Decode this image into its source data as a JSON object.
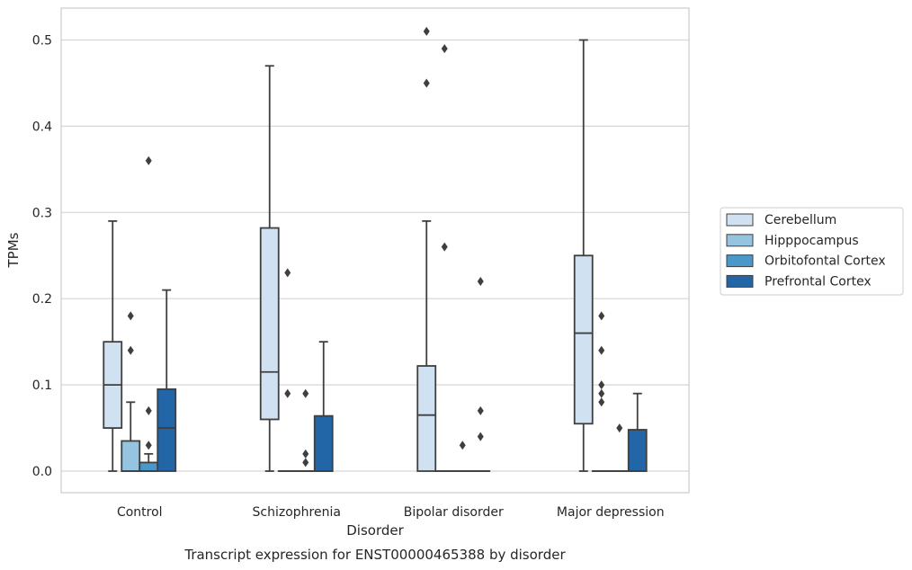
{
  "colors": {
    "Cerebellum": "#d0e1f2",
    "Hipppocampus": "#94c4df",
    "Orbitofontal Cortex": "#4a98c9",
    "Prefrontal Cortex": "#2366a8",
    "box_edge": "#3f3f3f",
    "grid": "#d6d6d6",
    "frame": "#cccccc"
  },
  "chart_data": {
    "type": "boxplot",
    "title": "Transcript expression for ENST00000465388 by disorder",
    "xlabel": "Disorder",
    "ylabel": "TPMs",
    "ylim": [
      -0.025,
      0.537
    ],
    "yticks": [
      "0.0",
      "0.1",
      "0.2",
      "0.3",
      "0.4",
      "0.5"
    ],
    "ytick_values": [
      0.0,
      0.1,
      0.2,
      0.3,
      0.4,
      0.5
    ],
    "grid": true,
    "legend_position": "right",
    "categories": [
      "Control",
      "Schizophrenia",
      "Bipolar disorder",
      "Major depression"
    ],
    "hue": [
      "Cerebellum",
      "Hipppocampus",
      "Orbitofontal Cortex",
      "Prefrontal Cortex"
    ],
    "boxes": [
      {
        "category": "Control",
        "hue": "Cerebellum",
        "min": 0.0,
        "q1": 0.05,
        "median": 0.1,
        "q3": 0.15,
        "max": 0.29,
        "outliers": []
      },
      {
        "category": "Control",
        "hue": "Hipppocampus",
        "min": 0.0,
        "q1": 0.0,
        "median": 0.0,
        "q3": 0.035,
        "max": 0.08,
        "outliers": [
          0.14,
          0.18
        ]
      },
      {
        "category": "Control",
        "hue": "Orbitofontal Cortex",
        "min": 0.0,
        "q1": 0.0,
        "median": 0.0,
        "q3": 0.01,
        "max": 0.02,
        "outliers": [
          0.03,
          0.07,
          0.36
        ]
      },
      {
        "category": "Control",
        "hue": "Prefrontal Cortex",
        "min": 0.0,
        "q1": 0.0,
        "median": 0.05,
        "q3": 0.095,
        "max": 0.21,
        "outliers": []
      },
      {
        "category": "Schizophrenia",
        "hue": "Cerebellum",
        "min": 0.0,
        "q1": 0.06,
        "median": 0.115,
        "q3": 0.282,
        "max": 0.47,
        "outliers": []
      },
      {
        "category": "Schizophrenia",
        "hue": "Hipppocampus",
        "min": 0.0,
        "q1": 0.0,
        "median": 0.0,
        "q3": 0.0,
        "max": 0.0,
        "outliers": [
          0.09,
          0.23
        ]
      },
      {
        "category": "Schizophrenia",
        "hue": "Orbitofontal Cortex",
        "min": 0.0,
        "q1": 0.0,
        "median": 0.0,
        "q3": 0.0,
        "max": 0.0,
        "outliers": [
          0.01,
          0.02,
          0.09
        ]
      },
      {
        "category": "Schizophrenia",
        "hue": "Prefrontal Cortex",
        "min": 0.0,
        "q1": 0.0,
        "median": 0.0,
        "q3": 0.064,
        "max": 0.15,
        "outliers": []
      },
      {
        "category": "Bipolar disorder",
        "hue": "Cerebellum",
        "min": 0.0,
        "q1": 0.0,
        "median": 0.065,
        "q3": 0.122,
        "max": 0.29,
        "outliers": [
          0.45,
          0.51
        ]
      },
      {
        "category": "Bipolar disorder",
        "hue": "Hipppocampus",
        "min": 0.0,
        "q1": 0.0,
        "median": 0.0,
        "q3": 0.0,
        "max": 0.0,
        "outliers": [
          0.26,
          0.49
        ]
      },
      {
        "category": "Bipolar disorder",
        "hue": "Orbitofontal Cortex",
        "min": 0.0,
        "q1": 0.0,
        "median": 0.0,
        "q3": 0.0,
        "max": 0.0,
        "outliers": [
          0.03
        ]
      },
      {
        "category": "Bipolar disorder",
        "hue": "Prefrontal Cortex",
        "min": 0.0,
        "q1": 0.0,
        "median": 0.0,
        "q3": 0.0,
        "max": 0.0,
        "outliers": [
          0.04,
          0.07,
          0.22
        ]
      },
      {
        "category": "Major depression",
        "hue": "Cerebellum",
        "min": 0.0,
        "q1": 0.055,
        "median": 0.16,
        "q3": 0.25,
        "max": 0.5,
        "outliers": []
      },
      {
        "category": "Major depression",
        "hue": "Hipppocampus",
        "min": 0.0,
        "q1": 0.0,
        "median": 0.0,
        "q3": 0.0,
        "max": 0.0,
        "outliers": [
          0.08,
          0.09,
          0.1,
          0.14,
          0.18
        ]
      },
      {
        "category": "Major depression",
        "hue": "Orbitofontal Cortex",
        "min": 0.0,
        "q1": 0.0,
        "median": 0.0,
        "q3": 0.0,
        "max": 0.0,
        "outliers": [
          0.05
        ]
      },
      {
        "category": "Major depression",
        "hue": "Prefrontal Cortex",
        "min": 0.0,
        "q1": 0.0,
        "median": 0.0,
        "q3": 0.048,
        "max": 0.09,
        "outliers": []
      }
    ]
  }
}
